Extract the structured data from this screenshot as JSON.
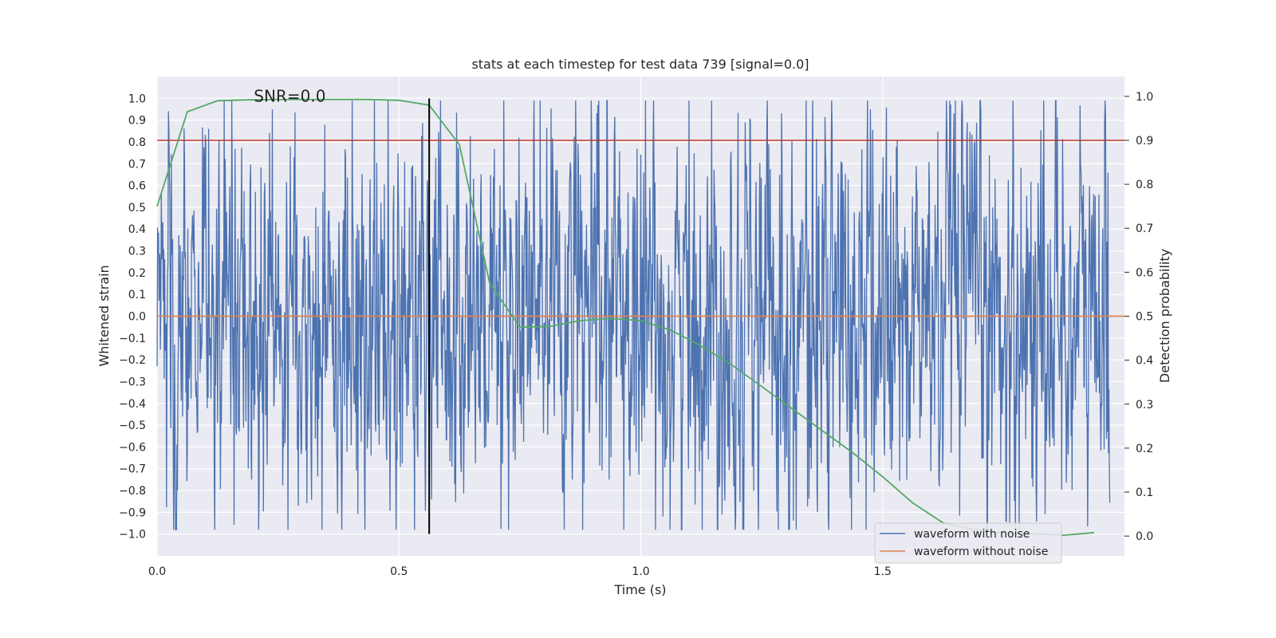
{
  "chart_data": {
    "type": "line",
    "title": "stats at each timestep for test data 739 [signal=0.0]",
    "xlabel": "Time (s)",
    "ylabel": "Whitened strain",
    "y2label": "Detection probability",
    "xlim": [
      0,
      2.0
    ],
    "ylim": [
      -1.1,
      1.1
    ],
    "y2lim": [
      -0.045,
      1.045
    ],
    "x_ticks": [
      0.0,
      0.5,
      1.0,
      1.5
    ],
    "x_tick_labels": [
      "0.0",
      "0.5",
      "1.0",
      "1.5"
    ],
    "y_ticks": [
      -1.0,
      -0.9,
      -0.8,
      -0.7,
      -0.6,
      -0.5,
      -0.4,
      -0.3,
      -0.2,
      -0.1,
      0.0,
      0.1,
      0.2,
      0.3,
      0.4,
      0.5,
      0.6,
      0.7,
      0.8,
      0.9,
      1.0
    ],
    "y_tick_labels": [
      "−1.0",
      "−0.9",
      "−0.8",
      "−0.7",
      "−0.6",
      "−0.5",
      "−0.4",
      "−0.3",
      "−0.2",
      "−0.1",
      "0.0",
      "0.1",
      "0.2",
      "0.3",
      "0.4",
      "0.5",
      "0.6",
      "0.7",
      "0.8",
      "0.9",
      "1.0"
    ],
    "y2_ticks": [
      0.0,
      0.1,
      0.2,
      0.3,
      0.4,
      0.5,
      0.6,
      0.7,
      0.8,
      0.9,
      1.0
    ],
    "y2_tick_labels": [
      "0.0",
      "0.1",
      "0.2",
      "0.3",
      "0.4",
      "0.5",
      "0.6",
      "0.7",
      "0.8",
      "0.9",
      "1.0"
    ],
    "grid": true,
    "legend_position": "bottom-right",
    "annotation": {
      "text": "SNR=0.0",
      "x": 0.2,
      "y": 1.0
    },
    "vertical_line": {
      "x": 0.5625,
      "ymin": -1.0,
      "ymax": 1.0,
      "color": "#000000"
    },
    "threshold_line": {
      "y2": 0.9,
      "color": "#c0392b"
    },
    "colors": {
      "background": "#eaeaf2",
      "grid": "#ffffff",
      "noisy": "#4c72b0",
      "clean": "#dd8452",
      "probability": "#55a868"
    },
    "series": [
      {
        "name": "waveform with noise",
        "axis": "left",
        "color": "#4c72b0",
        "sample_rate": 1024,
        "x_start": 0.0,
        "x_end": 2.0,
        "noise_description": "whitened gaussian noise, samples mostly within ±1"
      },
      {
        "name": "waveform without noise",
        "axis": "left",
        "color": "#dd8452",
        "x": [
          0.0,
          2.0
        ],
        "y": [
          0.0,
          0.0
        ]
      },
      {
        "name": "",
        "axis": "right",
        "color": "#55a868",
        "x": [
          0.0,
          0.0625,
          0.125,
          0.1875,
          0.25,
          0.3125,
          0.375,
          0.4375,
          0.5,
          0.5625,
          0.625,
          0.6875,
          0.75,
          0.8125,
          0.875,
          0.9375,
          1.0,
          1.0625,
          1.125,
          1.1875,
          1.25,
          1.3125,
          1.375,
          1.4375,
          1.5,
          1.5625,
          1.625,
          1.6875,
          1.75,
          1.8125,
          1.875,
          1.9375
        ],
        "y": [
          0.75,
          0.965,
          0.99,
          0.992,
          0.993,
          0.993,
          0.993,
          0.993,
          0.991,
          0.98,
          0.89,
          0.575,
          0.475,
          0.477,
          0.49,
          0.495,
          0.49,
          0.468,
          0.432,
          0.39,
          0.34,
          0.29,
          0.24,
          0.19,
          0.135,
          0.075,
          0.03,
          0.015,
          0.007,
          0.005,
          0.002,
          0.008
        ]
      }
    ]
  }
}
